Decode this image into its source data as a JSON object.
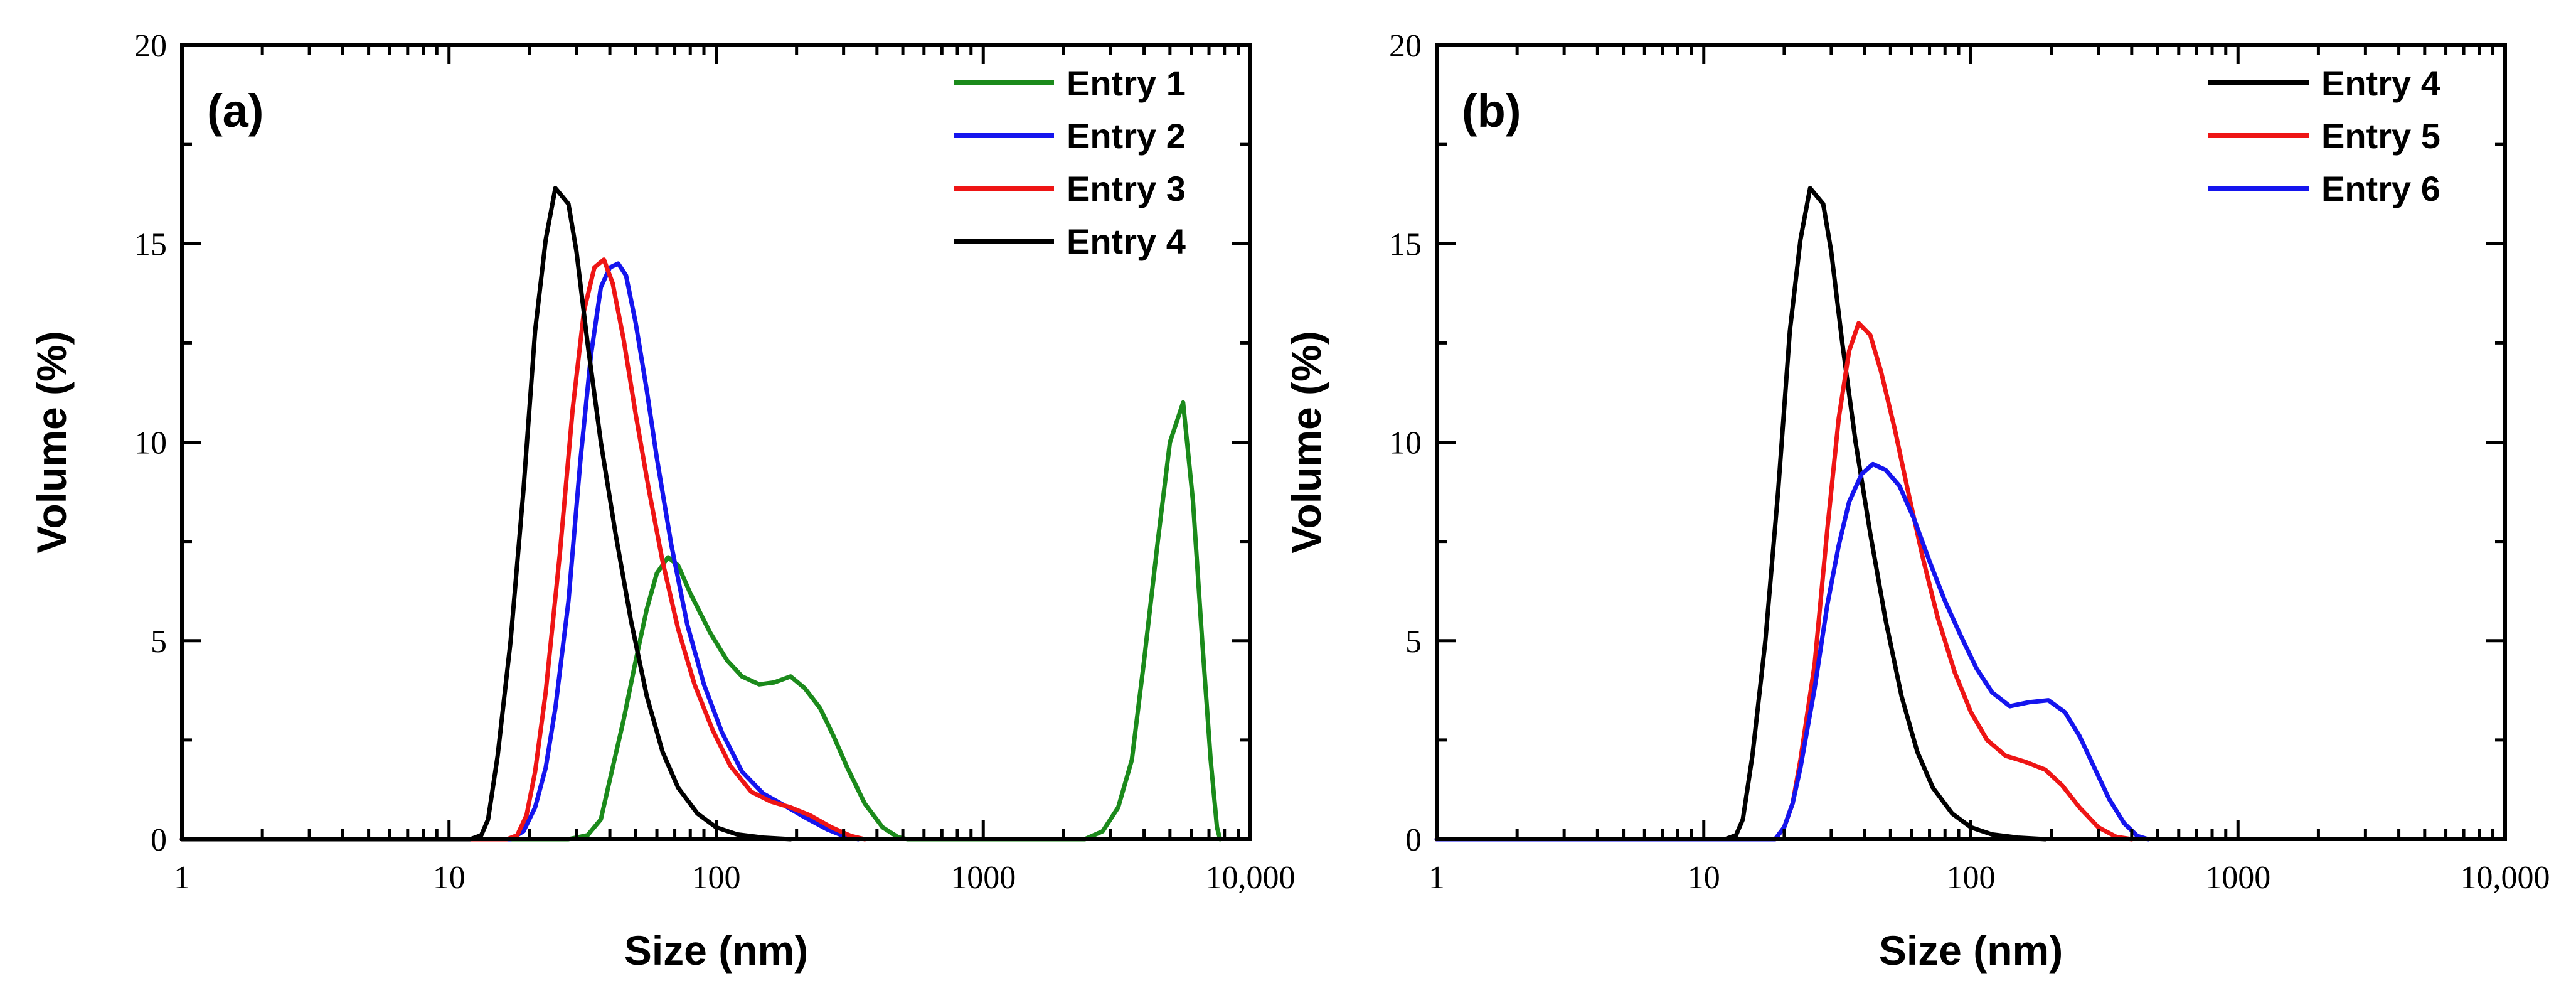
{
  "chart_data": [
    {
      "type": "line",
      "panel_label": "(a)",
      "xlabel": "Size (nm)",
      "ylabel": "Volume (%)",
      "xscale": "log",
      "xlim": [
        1,
        10000
      ],
      "ylim": [
        0,
        20
      ],
      "x_ticks": [
        1,
        10,
        100,
        1000,
        10000
      ],
      "x_tick_labels": [
        "1",
        "10",
        "100",
        "1000",
        "10,000"
      ],
      "y_ticks": [
        0,
        5,
        10,
        15,
        20
      ],
      "y_tick_labels": [
        "0",
        "5",
        "10",
        "15",
        "20"
      ],
      "legend_position": "top-right",
      "series": [
        {
          "name": "Entry 1",
          "color": "#1b8a1b",
          "points": [
            [
              1,
              0
            ],
            [
              28,
              0
            ],
            [
              33,
              0.1
            ],
            [
              37,
              0.5
            ],
            [
              40,
              1.5
            ],
            [
              45,
              3
            ],
            [
              50,
              4.5
            ],
            [
              55,
              5.8
            ],
            [
              60,
              6.7
            ],
            [
              66,
              7.1
            ],
            [
              72,
              6.9
            ],
            [
              80,
              6.2
            ],
            [
              95,
              5.2
            ],
            [
              110,
              4.5
            ],
            [
              125,
              4.1
            ],
            [
              145,
              3.9
            ],
            [
              165,
              3.95
            ],
            [
              190,
              4.1
            ],
            [
              215,
              3.8
            ],
            [
              245,
              3.3
            ],
            [
              275,
              2.6
            ],
            [
              310,
              1.8
            ],
            [
              360,
              0.9
            ],
            [
              420,
              0.3
            ],
            [
              480,
              0.05
            ],
            [
              520,
              0
            ],
            [
              2400,
              0
            ],
            [
              2800,
              0.2
            ],
            [
              3200,
              0.8
            ],
            [
              3600,
              2
            ],
            [
              4000,
              4.5
            ],
            [
              4500,
              7.5
            ],
            [
              5000,
              10
            ],
            [
              5600,
              11
            ],
            [
              6100,
              8.5
            ],
            [
              6600,
              5
            ],
            [
              7100,
              2
            ],
            [
              7500,
              0.3
            ],
            [
              7700,
              0
            ]
          ]
        },
        {
          "name": "Entry 2",
          "color": "#1515ee",
          "points": [
            [
              1,
              0
            ],
            [
              17,
              0
            ],
            [
              19,
              0.2
            ],
            [
              21,
              0.8
            ],
            [
              23,
              1.8
            ],
            [
              25,
              3.3
            ],
            [
              28,
              6
            ],
            [
              31,
              9.5
            ],
            [
              34,
              12.2
            ],
            [
              37,
              13.9
            ],
            [
              40,
              14.4
            ],
            [
              43,
              14.5
            ],
            [
              46,
              14.2
            ],
            [
              50,
              13
            ],
            [
              55,
              11.3
            ],
            [
              60,
              9.6
            ],
            [
              68,
              7.4
            ],
            [
              78,
              5.4
            ],
            [
              90,
              3.9
            ],
            [
              105,
              2.7
            ],
            [
              125,
              1.7
            ],
            [
              150,
              1.15
            ],
            [
              180,
              0.85
            ],
            [
              215,
              0.55
            ],
            [
              260,
              0.25
            ],
            [
              300,
              0.08
            ],
            [
              340,
              0
            ]
          ]
        },
        {
          "name": "Entry 3",
          "color": "#ee1515",
          "points": [
            [
              1,
              0
            ],
            [
              16.5,
              0
            ],
            [
              18,
              0.1
            ],
            [
              19.5,
              0.6
            ],
            [
              21,
              1.7
            ],
            [
              23,
              3.7
            ],
            [
              26,
              7.2
            ],
            [
              29,
              10.8
            ],
            [
              32,
              13.3
            ],
            [
              35,
              14.4
            ],
            [
              38,
              14.6
            ],
            [
              41,
              14
            ],
            [
              45,
              12.6
            ],
            [
              50,
              10.7
            ],
            [
              56,
              8.8
            ],
            [
              63,
              7
            ],
            [
              72,
              5.3
            ],
            [
              83,
              3.9
            ],
            [
              97,
              2.75
            ],
            [
              113,
              1.85
            ],
            [
              135,
              1.2
            ],
            [
              160,
              0.95
            ],
            [
              190,
              0.8
            ],
            [
              225,
              0.6
            ],
            [
              270,
              0.3
            ],
            [
              320,
              0.08
            ],
            [
              360,
              0
            ]
          ]
        },
        {
          "name": "Entry 4",
          "color": "#000000",
          "points": [
            [
              1,
              0
            ],
            [
              12,
              0
            ],
            [
              13.2,
              0.1
            ],
            [
              14,
              0.5
            ],
            [
              15.2,
              2.1
            ],
            [
              17,
              5
            ],
            [
              19,
              8.8
            ],
            [
              21,
              12.8
            ],
            [
              23,
              15.1
            ],
            [
              25,
              16.4
            ],
            [
              28,
              16
            ],
            [
              30,
              14.8
            ],
            [
              33,
              12.5
            ],
            [
              37,
              10
            ],
            [
              42,
              7.7
            ],
            [
              48,
              5.5
            ],
            [
              55,
              3.6
            ],
            [
              63,
              2.2
            ],
            [
              72,
              1.3
            ],
            [
              85,
              0.65
            ],
            [
              100,
              0.3
            ],
            [
              120,
              0.12
            ],
            [
              150,
              0.04
            ],
            [
              190,
              0
            ]
          ]
        }
      ]
    },
    {
      "type": "line",
      "panel_label": "(b)",
      "xlabel": "Size (nm)",
      "ylabel": "Volume (%)",
      "xscale": "log",
      "xlim": [
        1,
        10000
      ],
      "ylim": [
        0,
        20
      ],
      "x_ticks": [
        1,
        10,
        100,
        1000,
        10000
      ],
      "x_tick_labels": [
        "1",
        "10",
        "100",
        "1000",
        "10,000"
      ],
      "y_ticks": [
        0,
        5,
        10,
        15,
        20
      ],
      "y_tick_labels": [
        "0",
        "5",
        "10",
        "15",
        "20"
      ],
      "legend_position": "top-right",
      "series": [
        {
          "name": "Entry 4",
          "color": "#000000",
          "points": [
            [
              1,
              0
            ],
            [
              12,
              0
            ],
            [
              13.2,
              0.1
            ],
            [
              14,
              0.5
            ],
            [
              15.2,
              2.1
            ],
            [
              17,
              5
            ],
            [
              19,
              8.8
            ],
            [
              21,
              12.8
            ],
            [
              23,
              15.1
            ],
            [
              25,
              16.4
            ],
            [
              28,
              16
            ],
            [
              30,
              14.8
            ],
            [
              33,
              12.5
            ],
            [
              37,
              10
            ],
            [
              42,
              7.7
            ],
            [
              48,
              5.5
            ],
            [
              55,
              3.6
            ],
            [
              63,
              2.2
            ],
            [
              72,
              1.3
            ],
            [
              85,
              0.65
            ],
            [
              100,
              0.3
            ],
            [
              120,
              0.12
            ],
            [
              150,
              0.04
            ],
            [
              190,
              0
            ]
          ]
        },
        {
          "name": "Entry 5",
          "color": "#ee1515",
          "points": [
            [
              1,
              0
            ],
            [
              18.5,
              0
            ],
            [
              20,
              0.3
            ],
            [
              21.5,
              0.9
            ],
            [
              23,
              2
            ],
            [
              26,
              4.4
            ],
            [
              29,
              7.8
            ],
            [
              32,
              10.6
            ],
            [
              35,
              12.3
            ],
            [
              38,
              13
            ],
            [
              42,
              12.7
            ],
            [
              46,
              11.8
            ],
            [
              52,
              10.3
            ],
            [
              58,
              8.8
            ],
            [
              66,
              7.1
            ],
            [
              75,
              5.6
            ],
            [
              87,
              4.2
            ],
            [
              100,
              3.2
            ],
            [
              115,
              2.5
            ],
            [
              135,
              2.1
            ],
            [
              160,
              1.95
            ],
            [
              190,
              1.75
            ],
            [
              220,
              1.35
            ],
            [
              255,
              0.8
            ],
            [
              300,
              0.3
            ],
            [
              350,
              0.06
            ],
            [
              400,
              0
            ]
          ]
        },
        {
          "name": "Entry 6",
          "color": "#1515ee",
          "points": [
            [
              1,
              0
            ],
            [
              18.5,
              0
            ],
            [
              20,
              0.3
            ],
            [
              21.5,
              0.9
            ],
            [
              23,
              1.8
            ],
            [
              26,
              3.8
            ],
            [
              29,
              5.9
            ],
            [
              32,
              7.4
            ],
            [
              35,
              8.5
            ],
            [
              39,
              9.2
            ],
            [
              43,
              9.45
            ],
            [
              48,
              9.3
            ],
            [
              54,
              8.9
            ],
            [
              61,
              8.1
            ],
            [
              70,
              7
            ],
            [
              80,
              6
            ],
            [
              92,
              5.1
            ],
            [
              105,
              4.3
            ],
            [
              120,
              3.7
            ],
            [
              140,
              3.35
            ],
            [
              165,
              3.45
            ],
            [
              195,
              3.5
            ],
            [
              225,
              3.2
            ],
            [
              255,
              2.6
            ],
            [
              290,
              1.8
            ],
            [
              330,
              1
            ],
            [
              375,
              0.4
            ],
            [
              420,
              0.08
            ],
            [
              460,
              0
            ]
          ]
        }
      ]
    }
  ]
}
